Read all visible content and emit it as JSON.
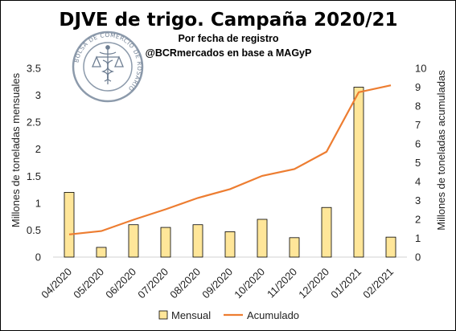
{
  "chart_data": {
    "type": "bar",
    "title": "DJVE de trigo. Campaña 2020/21",
    "subtitle_line1": "Por fecha de registro",
    "subtitle_line2": "@BCRmercados en base a MAGyP",
    "logo_text": "BOLSA DE COMERCIO DE ROSARIO",
    "categories": [
      "04/2020",
      "05/2020",
      "06/2020",
      "07/2020",
      "08/2020",
      "09/2020",
      "10/2020",
      "11/2020",
      "12/2020",
      "01/2021",
      "02/2021"
    ],
    "series": [
      {
        "name": "Mensual",
        "type": "bar",
        "axis": "left",
        "values": [
          1.2,
          0.18,
          0.6,
          0.55,
          0.6,
          0.47,
          0.7,
          0.36,
          0.92,
          3.15,
          0.37
        ],
        "color": "#ffe699",
        "stroke": "#000000"
      },
      {
        "name": "Acumulado",
        "type": "line",
        "axis": "right",
        "values": [
          1.2,
          1.38,
          1.98,
          2.53,
          3.13,
          3.6,
          4.3,
          4.66,
          5.58,
          8.73,
          9.1
        ],
        "color": "#ed7d31"
      }
    ],
    "ylabel": "Millones de toneladas mensuales",
    "y2label": "Millones de toneladas acumuladas",
    "ylim": [
      0,
      3.5
    ],
    "yticks": [
      "0",
      "0.5",
      "1",
      "1.5",
      "2",
      "2.5",
      "3",
      "3.5"
    ],
    "y2lim": [
      0,
      10
    ],
    "y2ticks": [
      "0",
      "1",
      "2",
      "3",
      "4",
      "5",
      "6",
      "7",
      "8",
      "9",
      "10"
    ],
    "grid": false,
    "legend_position": "bottom"
  }
}
